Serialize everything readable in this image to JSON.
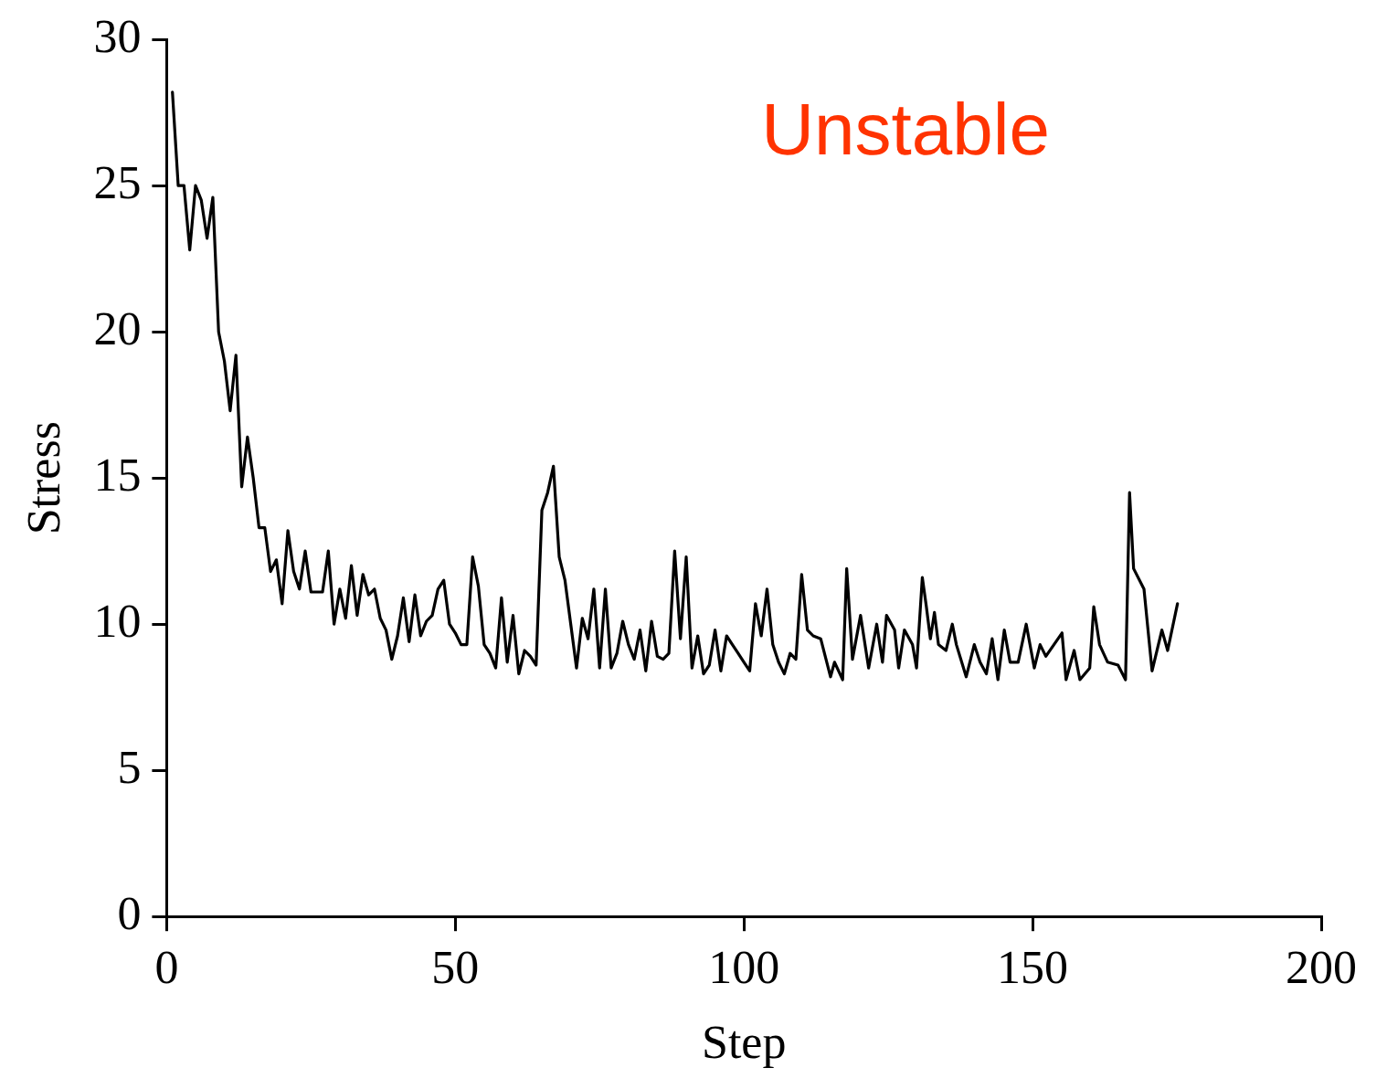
{
  "chart_data": {
    "type": "line",
    "xlabel": "Step",
    "ylabel": "Stress",
    "annotations": [
      "Unstable"
    ],
    "xlim": [
      0,
      200
    ],
    "xticks": [
      0,
      50,
      100,
      150,
      200
    ],
    "ylim": [
      0,
      30
    ],
    "yticks": [
      0,
      5,
      10,
      15,
      20,
      25,
      30
    ],
    "grid": false,
    "legend": false,
    "marker": "none",
    "line_style": "solid",
    "series": [
      {
        "color": "#000000",
        "x": [
          1,
          2,
          3,
          4,
          5,
          6,
          7,
          8,
          9,
          10,
          11,
          12,
          13,
          14,
          15,
          16,
          17,
          18,
          19,
          20,
          21,
          22,
          23,
          24,
          25,
          26,
          27,
          28,
          29,
          30,
          31,
          32,
          33,
          34,
          35,
          36,
          37,
          38,
          39,
          40,
          41,
          42,
          43,
          44,
          45,
          46,
          47,
          48,
          49,
          50,
          51,
          52,
          53,
          54,
          55,
          56,
          57,
          58,
          59,
          60,
          61,
          62,
          63,
          64,
          65,
          66,
          67,
          68,
          69,
          70,
          71,
          72,
          73,
          74,
          75,
          76,
          77,
          78,
          79,
          80,
          81,
          82,
          83,
          84,
          85,
          86,
          87,
          88,
          89,
          90,
          91,
          92,
          93,
          94,
          95,
          96,
          97,
          98,
          99,
          100,
          101,
          102,
          103,
          104,
          105,
          106,
          107,
          108,
          109,
          110,
          111,
          112,
          113.3,
          115,
          115.7,
          117.1,
          117.8,
          118.8,
          120.2,
          121.6,
          123,
          124,
          124.7,
          126.1,
          126.8,
          127.8,
          129.2,
          129.9,
          130.9,
          131.6,
          132.3,
          133,
          133.7,
          135,
          136.1,
          136.8,
          138.5,
          139.9,
          140.9,
          142,
          143,
          144,
          145.1,
          146.1,
          147.5,
          148.9,
          150.3,
          151.3,
          152.3,
          153.7,
          155.1,
          155.8,
          157.2,
          158.2,
          159.9,
          160.6,
          161.6,
          163,
          164.8,
          166.1,
          166.8,
          167.5,
          169.3,
          170.7,
          172.4,
          173.4,
          175.1
        ],
        "values": [
          28.2,
          25,
          25,
          22.8,
          25,
          24.5,
          23.2,
          24.6,
          20,
          19,
          17.3,
          19.2,
          14.7,
          16.4,
          15,
          13.3,
          13.3,
          11.8,
          12.2,
          10.7,
          13.2,
          11.8,
          11.2,
          12.5,
          11.1,
          11.1,
          11.1,
          12.5,
          10,
          11.2,
          10.2,
          12,
          10.3,
          11.7,
          11,
          11.2,
          10.2,
          9.8,
          8.8,
          9.6,
          10.9,
          9.4,
          11,
          9.6,
          10.1,
          10.3,
          11.2,
          11.5,
          10,
          9.7,
          9.3,
          9.3,
          12.3,
          11.3,
          9.3,
          9,
          8.5,
          10.9,
          8.7,
          10.3,
          8.3,
          9.1,
          8.9,
          8.6,
          13.9,
          14.5,
          15.4,
          12.3,
          11.5,
          10,
          8.5,
          10.2,
          9.5,
          11.2,
          8.5,
          11.2,
          8.5,
          9,
          10.1,
          9.3,
          8.8,
          9.8,
          8.4,
          10.1,
          8.9,
          8.8,
          9,
          12.5,
          9.5,
          12.3,
          8.5,
          9.6,
          8.3,
          8.6,
          9.8,
          8.4,
          9.6,
          9.3,
          9,
          8.7,
          8.4,
          10.7,
          9.6,
          11.2,
          9.3,
          8.7,
          8.3,
          9,
          8.8,
          11.7,
          9.8,
          9.6,
          9.5,
          8.2,
          8.7,
          8.1,
          11.9,
          8.8,
          10.3,
          8.5,
          10,
          8.7,
          10.3,
          9.8,
          8.5,
          9.8,
          9.3,
          8.5,
          11.6,
          10.6,
          9.5,
          10.4,
          9.3,
          9.1,
          10,
          9.3,
          8.2,
          9.3,
          8.7,
          8.3,
          9.5,
          8.1,
          9.8,
          8.7,
          8.7,
          10,
          8.5,
          9.3,
          8.9,
          9.3,
          9.7,
          8.1,
          9.1,
          8.1,
          8.5,
          10.6,
          9.3,
          8.7,
          8.6,
          8.1,
          14.5,
          11.9,
          11.2,
          8.4,
          9.8,
          9.1,
          10.7
        ]
      }
    ]
  }
}
